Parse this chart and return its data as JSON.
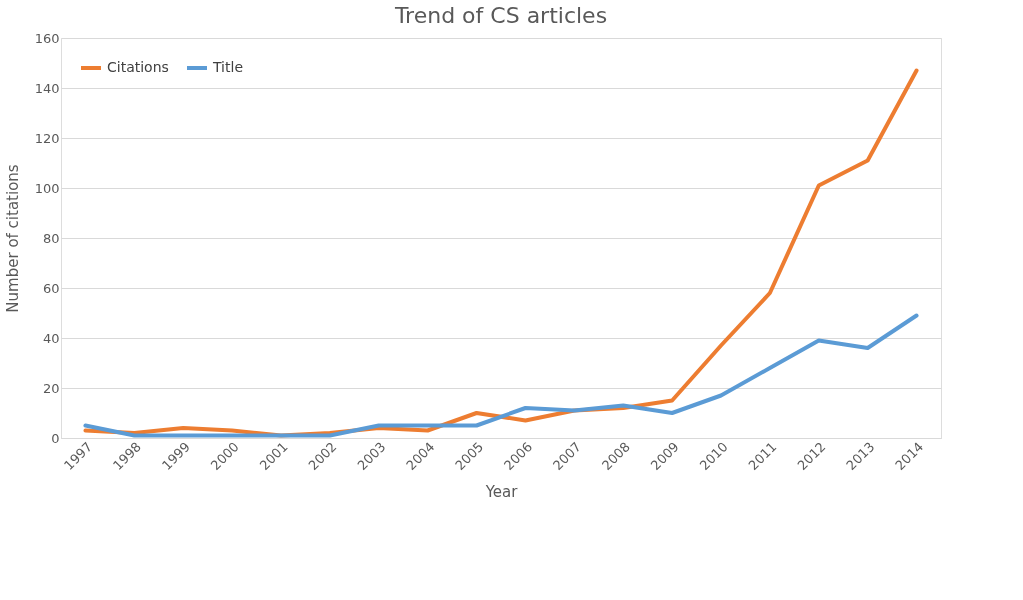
{
  "chart_data": {
    "type": "line",
    "title": "Trend of CS articles",
    "xlabel": "Year",
    "ylabel": "Number of citations",
    "categories": [
      "1997",
      "1998",
      "1999",
      "2000",
      "2001",
      "2002",
      "2003",
      "2004",
      "2005",
      "2006",
      "2007",
      "2008",
      "2009",
      "2010",
      "2011",
      "2012",
      "2013",
      "2014"
    ],
    "series": [
      {
        "name": "Citations",
        "color": "#ed7d31",
        "values": [
          3,
          2,
          4,
          3,
          1,
          2,
          4,
          3,
          10,
          7,
          11,
          12,
          15,
          37,
          58,
          101,
          111,
          147
        ]
      },
      {
        "name": "Title",
        "color": "#5b9bd5",
        "values": [
          5,
          1,
          1,
          1,
          1,
          1,
          5,
          5,
          5,
          12,
          11,
          13,
          10,
          17,
          28,
          39,
          36,
          49
        ]
      }
    ],
    "ylim": [
      0,
      160
    ],
    "yticks": [
      0,
      20,
      40,
      60,
      80,
      100,
      120,
      140,
      160
    ],
    "grid": "y",
    "legend": "top left",
    "marker": "none",
    "line_style": "solid"
  }
}
